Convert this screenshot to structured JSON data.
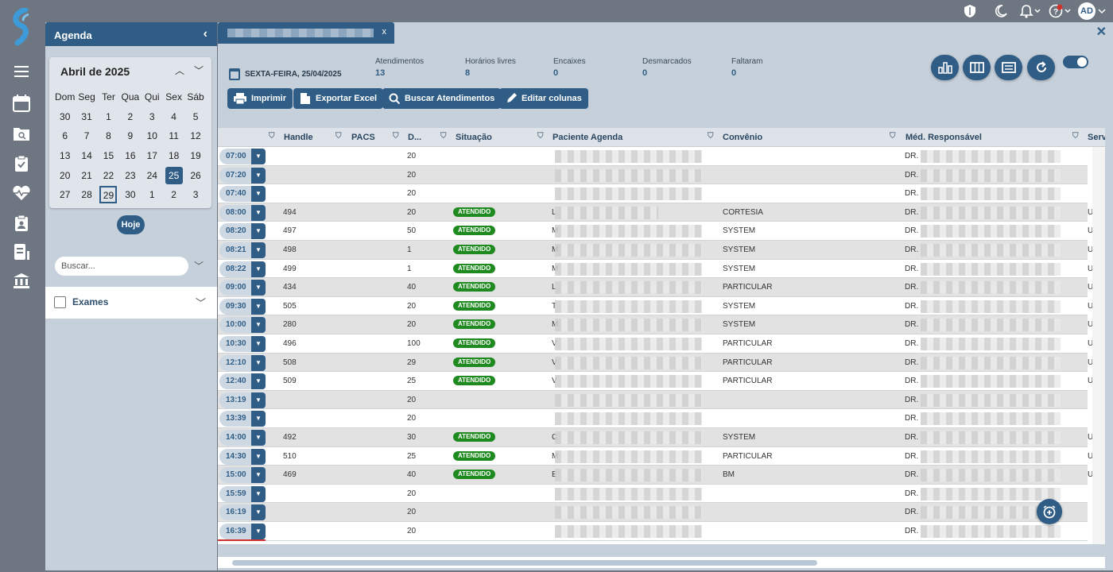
{
  "topbar": {
    "avatar": "AD",
    "help_badge": "1"
  },
  "agenda": {
    "title": "Agenda",
    "month_label": "Abril de 2025",
    "weekdays": [
      "Dom",
      "Seg",
      "Ter",
      "Qua",
      "Qui",
      "Sex",
      "Sáb"
    ],
    "weeks": [
      [
        "30",
        "31",
        "1",
        "2",
        "3",
        "4",
        "5"
      ],
      [
        "6",
        "7",
        "8",
        "9",
        "10",
        "11",
        "12"
      ],
      [
        "13",
        "14",
        "15",
        "16",
        "17",
        "18",
        "19"
      ],
      [
        "20",
        "21",
        "22",
        "23",
        "24",
        "25",
        "26"
      ],
      [
        "27",
        "28",
        "29",
        "30",
        "1",
        "2",
        "3"
      ]
    ],
    "selected_day": "25",
    "today_day": "29",
    "today_button": "Hoje",
    "search_placeholder": "Buscar...",
    "filter_label": "Exames"
  },
  "main": {
    "tab_close": "x",
    "date_label": "SEXTA-FEIRA, 25/04/2025",
    "stats": [
      {
        "label": "Atendimentos",
        "value": "13"
      },
      {
        "label": "Horários livres",
        "value": "8"
      },
      {
        "label": "Encaixes",
        "value": "0"
      },
      {
        "label": "Desmarcados",
        "value": "0"
      },
      {
        "label": "Faltaram",
        "value": "0"
      }
    ],
    "buttons": {
      "print": "Imprimir",
      "excel": "Exportar Excel",
      "search": "Buscar Atendimentos",
      "edit": "Editar colunas"
    }
  },
  "grid": {
    "columns": {
      "handle": "Handle",
      "pacs": "PACS",
      "d": "D...",
      "situacao": "Situação",
      "paciente": "Paciente Agenda",
      "convenio": "Convênio",
      "medico": "Méd. Responsável",
      "serv": "Serv"
    },
    "rows": [
      {
        "time": "07:00",
        "handle": "",
        "d": "20",
        "status": "",
        "initial": "",
        "convenio": "",
        "medico": "DR.",
        "serv": ""
      },
      {
        "time": "07:20",
        "handle": "",
        "d": "20",
        "status": "",
        "initial": "",
        "convenio": "",
        "medico": "DR.",
        "serv": ""
      },
      {
        "time": "07:40",
        "handle": "",
        "d": "20",
        "status": "",
        "initial": "",
        "convenio": "",
        "medico": "DR.",
        "serv": ""
      },
      {
        "time": "08:00",
        "handle": "494",
        "d": "20",
        "status": "ATENDIDO",
        "initial": "L",
        "convenio": "CORTESIA",
        "medico": "DR.",
        "serv": "US"
      },
      {
        "time": "08:20",
        "handle": "497",
        "d": "50",
        "status": "ATENDIDO",
        "initial": "M",
        "convenio": "SYSTEM",
        "medico": "DR.",
        "serv": "US"
      },
      {
        "time": "08:21",
        "handle": "498",
        "d": "1",
        "status": "ATENDIDO",
        "initial": "M",
        "convenio": "SYSTEM",
        "medico": "DR.",
        "serv": "US"
      },
      {
        "time": "08:22",
        "handle": "499",
        "d": "1",
        "status": "ATENDIDO",
        "initial": "M",
        "convenio": "SYSTEM",
        "medico": "DR.",
        "serv": "US"
      },
      {
        "time": "09:00",
        "handle": "434",
        "d": "40",
        "status": "ATENDIDO",
        "initial": "L",
        "convenio": "PARTICULAR",
        "medico": "DR.",
        "serv": "US"
      },
      {
        "time": "09:30",
        "handle": "505",
        "d": "20",
        "status": "ATENDIDO",
        "initial": "T",
        "convenio": "SYSTEM",
        "medico": "DR.",
        "serv": "US"
      },
      {
        "time": "10:00",
        "handle": "280",
        "d": "20",
        "status": "ATENDIDO",
        "initial": "M",
        "convenio": "SYSTEM",
        "medico": "DR.",
        "serv": "US"
      },
      {
        "time": "10:30",
        "handle": "496",
        "d": "100",
        "status": "ATENDIDO",
        "initial": "V",
        "convenio": "PARTICULAR",
        "medico": "DR.",
        "serv": "US"
      },
      {
        "time": "12:10",
        "handle": "508",
        "d": "29",
        "status": "ATENDIDO",
        "initial": "V",
        "convenio": "PARTICULAR",
        "medico": "DR.",
        "serv": "US"
      },
      {
        "time": "12:40",
        "handle": "509",
        "d": "25",
        "status": "ATENDIDO",
        "initial": "V",
        "convenio": "PARTICULAR",
        "medico": "DR.",
        "serv": "US"
      },
      {
        "time": "13:19",
        "handle": "",
        "d": "20",
        "status": "",
        "initial": "",
        "convenio": "",
        "medico": "DR.",
        "serv": ""
      },
      {
        "time": "13:39",
        "handle": "",
        "d": "20",
        "status": "",
        "initial": "",
        "convenio": "",
        "medico": "DR.",
        "serv": ""
      },
      {
        "time": "14:00",
        "handle": "492",
        "d": "30",
        "status": "ATENDIDO",
        "initial": "C",
        "convenio": "SYSTEM",
        "medico": "DR.",
        "serv": "US"
      },
      {
        "time": "14:30",
        "handle": "510",
        "d": "25",
        "status": "ATENDIDO",
        "initial": "M",
        "convenio": "PARTICULAR",
        "medico": "DR.",
        "serv": "US"
      },
      {
        "time": "15:00",
        "handle": "469",
        "d": "40",
        "status": "ATENDIDO",
        "initial": "E",
        "convenio": "BM",
        "medico": "DR.",
        "serv": "US"
      },
      {
        "time": "15:59",
        "handle": "",
        "d": "20",
        "status": "",
        "initial": "",
        "convenio": "",
        "medico": "DR.",
        "serv": ""
      },
      {
        "time": "16:19",
        "handle": "",
        "d": "20",
        "status": "",
        "initial": "",
        "convenio": "",
        "medico": "DR.",
        "serv": ""
      },
      {
        "time": "16:39",
        "handle": "",
        "d": "20",
        "status": "",
        "initial": "",
        "convenio": "",
        "medico": "DR.",
        "serv": ""
      }
    ]
  }
}
